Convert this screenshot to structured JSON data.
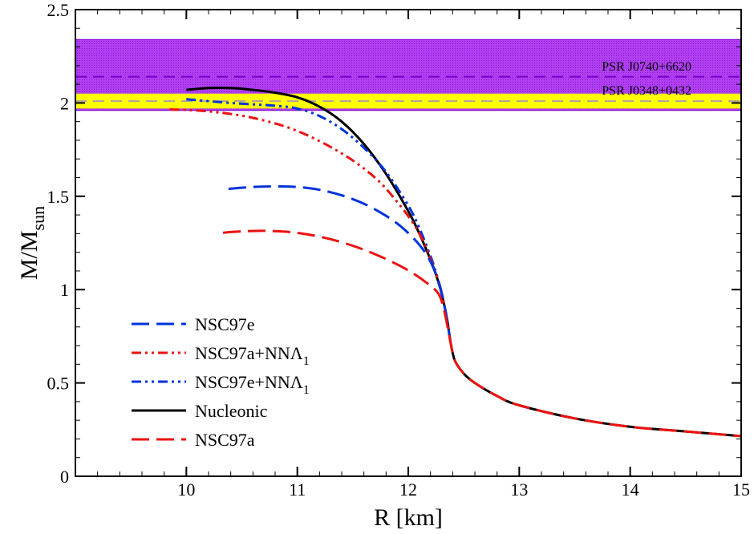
{
  "chart_data": {
    "type": "line",
    "xlabel": "R [km]",
    "ylabel": {
      "main": "M/M",
      "sub": "sun"
    },
    "xlim": [
      9,
      15
    ],
    "ylim": [
      0,
      2.5
    ],
    "x_ticks": [
      {
        "value": 10,
        "label": "10"
      },
      {
        "value": 11,
        "label": "11"
      },
      {
        "value": 12,
        "label": "12"
      },
      {
        "value": 13,
        "label": "13"
      },
      {
        "value": 14,
        "label": "14"
      },
      {
        "value": 15,
        "label": "15"
      }
    ],
    "y_ticks": [
      {
        "value": 0,
        "label": "0"
      },
      {
        "value": 0.5,
        "label": "0.5"
      },
      {
        "value": 1,
        "label": "1"
      },
      {
        "value": 1.5,
        "label": "1.5"
      },
      {
        "value": 2,
        "label": "2"
      },
      {
        "value": 2.5,
        "label": "2.5"
      }
    ],
    "x_minor_step": 0.2,
    "y_minor_step": 0.1,
    "grid": false,
    "bands": [
      {
        "name": "PSR J0740+6620",
        "ymin": 1.96,
        "ymax": 2.34,
        "center": 2.14,
        "fill": "#a020f0",
        "line": "#7a00cc"
      },
      {
        "name": "PSR J0348+0432",
        "ymin": 1.97,
        "ymax": 2.05,
        "center": 2.01,
        "fill": "#ffff00",
        "line": "#b0a0a0"
      }
    ],
    "legend": {
      "placement": "lower-left",
      "entries": [
        {
          "main": "NSC97e",
          "sub": "",
          "color": "#0033dd",
          "dash": "dash"
        },
        {
          "main": "NSC97a+NNΛ",
          "sub": "1",
          "color": "#ee1111",
          "dash": "dashdotdot"
        },
        {
          "main": "NSC97e+NNΛ",
          "sub": "1",
          "color": "#0033dd",
          "dash": "dashdotdot"
        },
        {
          "main": "Nucleonic",
          "sub": "",
          "color": "#000000",
          "dash": "solid"
        },
        {
          "main": "NSC97a",
          "sub": "",
          "color": "#ee1111",
          "dash": "dash"
        }
      ]
    },
    "series": [
      {
        "name": "Nucleonic",
        "color": "#000000",
        "dash": "solid",
        "width": 3,
        "x": [
          10.0,
          10.2,
          10.4,
          10.6,
          10.8,
          11.0,
          11.2,
          11.4,
          11.6,
          11.8,
          12.0,
          12.1,
          12.2,
          12.25,
          12.3,
          12.35,
          12.38,
          12.42,
          12.5,
          12.6,
          12.8,
          13.0,
          13.5,
          14.0,
          14.5,
          15.0
        ],
        "y": [
          2.07,
          2.08,
          2.08,
          2.07,
          2.055,
          2.03,
          1.98,
          1.9,
          1.78,
          1.62,
          1.42,
          1.3,
          1.16,
          1.08,
          0.98,
          0.84,
          0.72,
          0.62,
          0.55,
          0.5,
          0.43,
          0.38,
          0.31,
          0.265,
          0.24,
          0.215
        ]
      },
      {
        "name": "NSC97e+NNΛ1",
        "color": "#0033dd",
        "dash": "dashdotdot",
        "width": 3,
        "x": [
          10.0,
          10.4,
          10.8,
          11.0,
          11.2,
          11.4,
          11.6,
          11.8,
          12.0,
          12.1,
          12.2,
          12.25,
          12.3,
          12.35,
          12.38
        ],
        "y": [
          2.02,
          2.0,
          1.985,
          1.97,
          1.93,
          1.86,
          1.76,
          1.63,
          1.45,
          1.33,
          1.18,
          1.09,
          0.98,
          0.84,
          0.72
        ]
      },
      {
        "name": "NSC97a+NNΛ1",
        "color": "#ee1111",
        "dash": "dashdotdot",
        "width": 3,
        "x": [
          9.85,
          10.2,
          10.6,
          11.0,
          11.4,
          11.7,
          11.9,
          12.05,
          12.15,
          12.22,
          12.28,
          12.33,
          12.38
        ],
        "y": [
          1.965,
          1.955,
          1.92,
          1.85,
          1.73,
          1.6,
          1.47,
          1.35,
          1.24,
          1.13,
          1.03,
          0.9,
          0.72
        ]
      },
      {
        "name": "NSC97e",
        "color": "#0033dd",
        "dash": "dash",
        "width": 3,
        "x": [
          10.38,
          10.6,
          10.8,
          11.0,
          11.2,
          11.4,
          11.6,
          11.8,
          11.95,
          12.1,
          12.2,
          12.28,
          12.33,
          12.38
        ],
        "y": [
          1.54,
          1.55,
          1.553,
          1.55,
          1.535,
          1.505,
          1.46,
          1.395,
          1.33,
          1.24,
          1.15,
          1.03,
          0.9,
          0.72
        ]
      },
      {
        "name": "NSC97a",
        "color": "#ee1111",
        "dash": "dash",
        "width": 3,
        "x": [
          10.33,
          10.5,
          10.7,
          10.9,
          11.1,
          11.3,
          11.5,
          11.7,
          11.9,
          12.05,
          12.2,
          12.28,
          12.33,
          12.38,
          12.42,
          12.5,
          12.6,
          12.8,
          13.0,
          13.5,
          14.0,
          14.5,
          15.0
        ],
        "y": [
          1.305,
          1.312,
          1.315,
          1.31,
          1.295,
          1.27,
          1.235,
          1.19,
          1.135,
          1.085,
          1.02,
          0.97,
          0.87,
          0.72,
          0.62,
          0.55,
          0.5,
          0.43,
          0.38,
          0.31,
          0.265,
          0.24,
          0.215
        ]
      }
    ]
  }
}
